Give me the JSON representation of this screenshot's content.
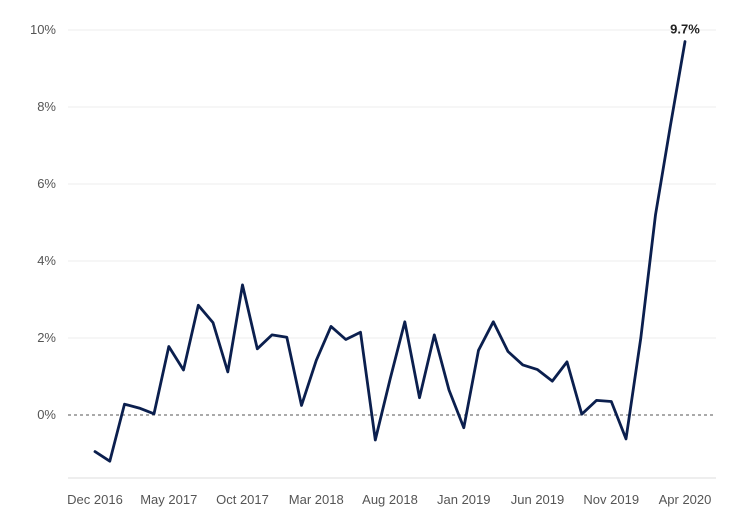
{
  "chart_data": {
    "type": "line",
    "title": "",
    "xlabel": "",
    "ylabel": "",
    "ylim": [
      -1.5,
      10
    ],
    "y_ticks": [
      {
        "value": 0,
        "label": "0%"
      },
      {
        "value": 2,
        "label": "2%"
      },
      {
        "value": 4,
        "label": "4%"
      },
      {
        "value": 6,
        "label": "6%"
      },
      {
        "value": 8,
        "label": "8%"
      },
      {
        "value": 10,
        "label": "10%"
      }
    ],
    "x_ticks": [
      {
        "index": 0,
        "label": "Dec 2016"
      },
      {
        "index": 5,
        "label": "May 2017"
      },
      {
        "index": 10,
        "label": "Oct 2017"
      },
      {
        "index": 15,
        "label": "Mar 2018"
      },
      {
        "index": 20,
        "label": "Aug 2018"
      },
      {
        "index": 25,
        "label": "Jan 2019"
      },
      {
        "index": 30,
        "label": "Jun 2019"
      },
      {
        "index": 35,
        "label": "Nov 2019"
      },
      {
        "index": 40,
        "label": "Apr 2020"
      }
    ],
    "x": [
      "Dec 2016",
      "Jan 2017",
      "Feb 2017",
      "Mar 2017",
      "Apr 2017",
      "May 2017",
      "Jun 2017",
      "Jul 2017",
      "Aug 2017",
      "Sep 2017",
      "Oct 2017",
      "Nov 2017",
      "Dec 2017",
      "Jan 2018",
      "Feb 2018",
      "Mar 2018",
      "Apr 2018",
      "May 2018",
      "Jun 2018",
      "Jul 2018",
      "Aug 2018",
      "Sep 2018",
      "Oct 2018",
      "Nov 2018",
      "Dec 2018",
      "Jan 2019",
      "Feb 2019",
      "Mar 2019",
      "Apr 2019",
      "May 2019",
      "Jun 2019",
      "Jul 2019",
      "Aug 2019",
      "Sep 2019",
      "Oct 2019",
      "Nov 2019",
      "Dec 2019",
      "Jan 2020",
      "Feb 2020",
      "Mar 2020",
      "Apr 2020"
    ],
    "series": [
      {
        "values": [
          -0.95,
          -1.2,
          0.28,
          0.18,
          0.03,
          1.78,
          1.17,
          2.85,
          2.4,
          1.12,
          3.38,
          1.72,
          2.08,
          2.02,
          0.25,
          1.42,
          2.3,
          1.96,
          2.15,
          -0.65,
          0.92,
          2.42,
          0.45,
          2.08,
          0.65,
          -0.33,
          1.68,
          2.42,
          1.65,
          1.3,
          1.18,
          0.88,
          1.38,
          0.02,
          0.38,
          0.35,
          -0.62,
          2.0,
          5.2,
          7.5,
          9.7
        ]
      }
    ],
    "end_label": "9.7%",
    "baseline_style": "dashed",
    "gridlines": true,
    "line_color": "#0b1f4e",
    "grid_color": "#eeeeee",
    "baseline_color": "#555555"
  }
}
